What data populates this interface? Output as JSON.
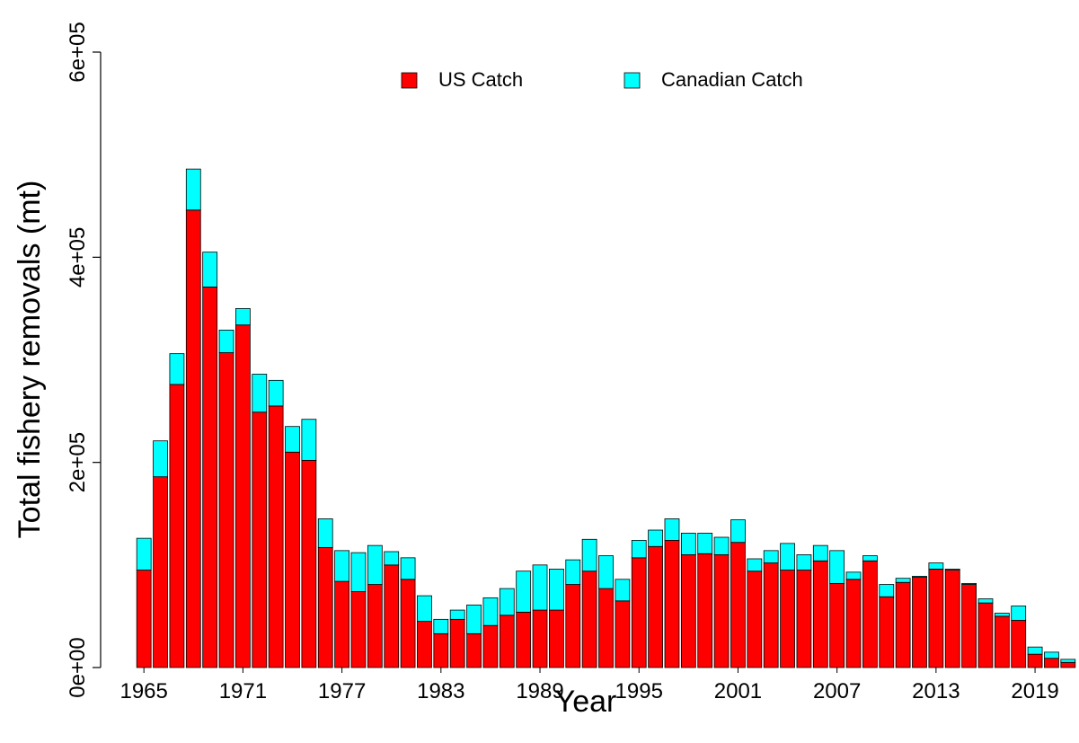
{
  "chart_data": {
    "type": "stacked_bar",
    "x_label": "Year",
    "y_label": "Total fishery removals (mt)",
    "categories": [
      "1965",
      null,
      null,
      null,
      null,
      null,
      "1971",
      null,
      null,
      null,
      null,
      null,
      "1977",
      null,
      null,
      null,
      null,
      null,
      "1983",
      null,
      null,
      null,
      null,
      null,
      "1989",
      null,
      null,
      null,
      null,
      null,
      "1995",
      null,
      null,
      null,
      null,
      null,
      "2001",
      null,
      null,
      null,
      null,
      null,
      "2007",
      null,
      null,
      null,
      null,
      null,
      "2013",
      null,
      null,
      null,
      null,
      null,
      "2019",
      null,
      null
    ],
    "series": [
      {
        "name": "US Catch",
        "color": "#ff0000",
        "values": [
          95000,
          186000,
          276000,
          446000,
          371000,
          307000,
          334000,
          249000,
          255000,
          210000,
          202000,
          117000,
          84000,
          74000,
          81000,
          100000,
          86000,
          45000,
          33000,
          47000,
          33000,
          41000,
          51000,
          54000,
          56000,
          56000,
          81000,
          94000,
          77000,
          65000,
          107000,
          118000,
          124000,
          110000,
          111000,
          110000,
          122000,
          94000,
          102000,
          95000,
          95000,
          104000,
          82000,
          86000,
          104000,
          69000,
          83000,
          88000,
          96000,
          95000,
          81000,
          63000,
          50000,
          46000,
          13000,
          9000,
          5000
        ]
      },
      {
        "name": "Canadian Catch",
        "color": "#00ffff",
        "values": [
          31000,
          35000,
          30000,
          40000,
          34000,
          22000,
          16000,
          37000,
          25000,
          25000,
          40000,
          28000,
          30000,
          38000,
          38000,
          13000,
          21000,
          25000,
          14000,
          9000,
          28000,
          27000,
          26000,
          40000,
          44000,
          40000,
          24000,
          31000,
          32000,
          21000,
          17000,
          16000,
          21000,
          21000,
          20000,
          17000,
          22000,
          12000,
          12000,
          26000,
          15000,
          15000,
          32000,
          7000,
          5000,
          12000,
          4000,
          1000,
          6000,
          1000,
          1000,
          4000,
          3000,
          14000,
          7000,
          6000,
          3000
        ]
      }
    ],
    "ylim": [
      0,
      600000
    ],
    "yticks": [
      {
        "value": 0,
        "label": "0e+00"
      },
      {
        "value": 200000,
        "label": "2e+05"
      },
      {
        "value": 400000,
        "label": "4e+05"
      },
      {
        "value": 600000,
        "label": "6e+05"
      }
    ],
    "legend": "top"
  }
}
